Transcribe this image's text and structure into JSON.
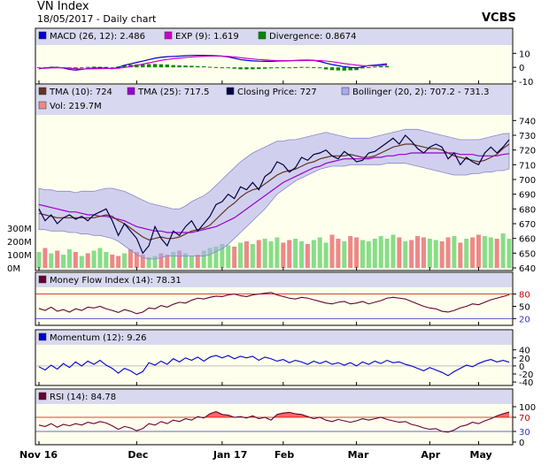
{
  "header": {
    "title": "VN Index",
    "subtitle": "18/05/2017 - Daily chart",
    "brand": "VCBS"
  },
  "colors": {
    "panel_bg": "#ffffee",
    "legend_bg": "#d8d8f0",
    "macd": "#0000cc",
    "exp": "#cc00cc",
    "divergence": "#008800",
    "tma10": "#663322",
    "tma25": "#9900cc",
    "close": "#000044",
    "bollinger_fill": "#aaaaee",
    "vol_up": "#88dd88",
    "vol_down": "#ee8888",
    "mfi": "#660033",
    "momentum": "#0000cc",
    "rsi": "#660033",
    "rsi_fill": "#ff6666"
  },
  "chart_data": [
    {
      "type": "line",
      "panel": "MACD",
      "legend": [
        {
          "label": "MACD (26, 12): 2.486",
          "color": "macd"
        },
        {
          "label": "EXP (9): 1.619",
          "color": "exp"
        },
        {
          "label": "Divergence: 0.8674",
          "color": "divergence"
        }
      ],
      "ylim": [
        -10,
        14
      ],
      "y_ticks": [
        "10",
        "0",
        "-10"
      ],
      "y_tick_values": [
        10,
        0,
        -10
      ],
      "series": [
        {
          "name": "MACD (26, 12)",
          "values": [
            -1,
            -0.5,
            0,
            0,
            -0.5,
            -1.5,
            -2,
            -1.5,
            -0.8,
            -0.5,
            -0.5,
            -0.5,
            -1,
            0,
            1.5,
            2.5,
            3.5,
            4.5,
            5.5,
            6.5,
            7.2,
            7.6,
            7.8,
            8,
            8.3,
            8.5,
            8.6,
            8.6,
            8.5,
            8.3,
            8,
            7.4,
            6.5,
            5.5,
            5,
            4.6,
            4.4,
            4.3,
            4.3,
            4.5,
            4.6,
            4.7,
            4.9,
            5.1,
            5.2,
            5,
            4.2,
            3,
            2,
            1.2,
            0.4,
            0,
            -0.4,
            0.4,
            1.2,
            1.6,
            2,
            2.5
          ]
        },
        {
          "name": "EXP (9)",
          "values": [
            -0.6,
            -0.6,
            -0.4,
            -0.3,
            -0.3,
            -0.6,
            -1,
            -1.2,
            -1.1,
            -1,
            -0.9,
            -0.8,
            -0.8,
            -0.6,
            -0.1,
            0.6,
            1.4,
            2.3,
            3.2,
            4.1,
            5,
            5.6,
            6.2,
            6.6,
            7,
            7.4,
            7.7,
            7.9,
            8.1,
            8.1,
            8,
            7.8,
            7.5,
            6.9,
            6.4,
            6,
            5.6,
            5.3,
            5,
            4.8,
            4.8,
            4.8,
            4.8,
            4.8,
            4.9,
            4.9,
            4.8,
            4.5,
            4,
            3.4,
            2.7,
            2.1,
            1.6,
            1.2,
            1.1,
            1.1,
            1.3,
            1.6
          ]
        },
        {
          "name": "Divergence",
          "type": "bar",
          "values": [
            -0.4,
            0.1,
            0.4,
            0.3,
            -0.2,
            -0.9,
            -1,
            -0.3,
            0.3,
            0.5,
            0.4,
            0.3,
            -0.2,
            0.6,
            1.6,
            1.9,
            2.1,
            2.2,
            2.3,
            2.4,
            2.2,
            2,
            1.6,
            1.4,
            1.3,
            1.1,
            0.9,
            0.7,
            0.4,
            0.2,
            0,
            -0.4,
            -1,
            -1.4,
            -1.4,
            -1.4,
            -1.2,
            -1,
            -0.7,
            -0.3,
            -0.2,
            -0.1,
            0.1,
            0.3,
            0.3,
            0.1,
            -0.6,
            -1.5,
            -2,
            -2.2,
            -2.3,
            -2.1,
            -2,
            -0.8,
            0.1,
            0.5,
            0.7,
            0.9
          ]
        }
      ]
    },
    {
      "type": "line",
      "panel": "Price",
      "legend": [
        {
          "label": "TMA (10): 724",
          "color": "tma10"
        },
        {
          "label": "TMA (25): 717.5",
          "color": "tma25"
        },
        {
          "label": "Closing Price: 727",
          "color": "close"
        },
        {
          "label": "Bollinger (20, 2): 707.2 - 731.3",
          "color": "bollinger_fill"
        },
        {
          "label": "Vol: 219.7M",
          "color": "vol_down"
        }
      ],
      "ylim": [
        640,
        742
      ],
      "y_ticks": [
        "740",
        "730",
        "720",
        "710",
        "700",
        "690",
        "680",
        "670",
        "660",
        "650",
        "640"
      ],
      "y_tick_values": [
        740,
        730,
        720,
        710,
        700,
        690,
        680,
        670,
        660,
        650,
        640
      ],
      "vol_ticks": [
        "300M",
        "200M",
        "100M",
        "0M"
      ],
      "vol_tick_values": [
        300,
        200,
        100,
        0
      ],
      "vol_max": 300,
      "series": [
        {
          "name": "Closing Price",
          "values": [
            680,
            672,
            676,
            670,
            674,
            676,
            673,
            675,
            672,
            676,
            678,
            680,
            672,
            662,
            670,
            665,
            660,
            650,
            655,
            668,
            660,
            655,
            665,
            662,
            668,
            672,
            665,
            670,
            675,
            683,
            685,
            690,
            687,
            695,
            693,
            698,
            693,
            702,
            705,
            712,
            710,
            705,
            708,
            715,
            713,
            717,
            718,
            720,
            716,
            714,
            719,
            716,
            712,
            713,
            718,
            719,
            722,
            725,
            728,
            724,
            730,
            726,
            721,
            718,
            722,
            724,
            722,
            714,
            718,
            710,
            715,
            712,
            710,
            718,
            722,
            718,
            722,
            727
          ]
        },
        {
          "name": "TMA (10)",
          "values": [
            677,
            676,
            675,
            674,
            674,
            674,
            674,
            674,
            674,
            674,
            675,
            676,
            675,
            672,
            670,
            667,
            664,
            661,
            659,
            660,
            661,
            660,
            660,
            661,
            663,
            665,
            666,
            667,
            669,
            673,
            677,
            681,
            684,
            688,
            691,
            693,
            694,
            697,
            700,
            703,
            705,
            706,
            707,
            709,
            711,
            712,
            714,
            715,
            716,
            716,
            716,
            717,
            716,
            715,
            715,
            716,
            718,
            720,
            722,
            723,
            724,
            724,
            723,
            722,
            721,
            721,
            720,
            718,
            716,
            715,
            714,
            713,
            712,
            713,
            715,
            717,
            721,
            724
          ]
        },
        {
          "name": "TMA (25)",
          "values": [
            683,
            682,
            681,
            680,
            679,
            678,
            678,
            677,
            676,
            676,
            675,
            675,
            674,
            673,
            672,
            670,
            668,
            667,
            666,
            665,
            665,
            664,
            664,
            664,
            664,
            664,
            665,
            666,
            667,
            668,
            670,
            672,
            674,
            677,
            680,
            683,
            686,
            689,
            692,
            695,
            698,
            700,
            702,
            704,
            706,
            708,
            709,
            711,
            712,
            713,
            714,
            714,
            714,
            714,
            714,
            715,
            715,
            716,
            716,
            717,
            717,
            718,
            718,
            718,
            718,
            718,
            718,
            718,
            718,
            717,
            717,
            717,
            716,
            716,
            716,
            716,
            717,
            717.5
          ]
        },
        {
          "name": "Bollinger Upper",
          "values": [
            694,
            693,
            693,
            692,
            692,
            692,
            691,
            692,
            692,
            692,
            693,
            694,
            694,
            693,
            692,
            690,
            688,
            686,
            684,
            683,
            682,
            681,
            680,
            680,
            682,
            685,
            687,
            689,
            692,
            696,
            700,
            704,
            708,
            712,
            715,
            718,
            720,
            722,
            724,
            726,
            726,
            727,
            727,
            728,
            729,
            730,
            731,
            732,
            731,
            730,
            729,
            728,
            728,
            728,
            728,
            729,
            730,
            731,
            732,
            733,
            734,
            734,
            734,
            733,
            732,
            731,
            730,
            729,
            728,
            727,
            727,
            727,
            727,
            728,
            729,
            730,
            731,
            731.3
          ]
        },
        {
          "name": "Bollinger Lower",
          "values": [
            666,
            666,
            665,
            665,
            665,
            664,
            664,
            663,
            663,
            662,
            662,
            661,
            660,
            658,
            655,
            652,
            649,
            647,
            646,
            646,
            647,
            648,
            648,
            648,
            648,
            648,
            648,
            648,
            649,
            651,
            653,
            656,
            660,
            664,
            668,
            672,
            676,
            680,
            685,
            690,
            693,
            696,
            699,
            701,
            703,
            705,
            707,
            708,
            709,
            709,
            709,
            710,
            710,
            710,
            710,
            710,
            710,
            711,
            711,
            711,
            711,
            710,
            709,
            708,
            707,
            706,
            705,
            704,
            703,
            703,
            703,
            704,
            704,
            705,
            705,
            706,
            706,
            707.2
          ]
        },
        {
          "name": "Vol",
          "type": "bar",
          "values": [
            120,
            150,
            110,
            130,
            100,
            140,
            120,
            90,
            110,
            130,
            150,
            120,
            100,
            90,
            110,
            140,
            120,
            100,
            80,
            90,
            110,
            100,
            120,
            130,
            110,
            90,
            100,
            130,
            150,
            160,
            180,
            170,
            160,
            190,
            200,
            180,
            210,
            220,
            200,
            230,
            190,
            210,
            220,
            200,
            180,
            210,
            230,
            190,
            250,
            220,
            200,
            240,
            230,
            210,
            200,
            220,
            240,
            220,
            250,
            230,
            200,
            210,
            240,
            230,
            220,
            210,
            200,
            230,
            240,
            190,
            220,
            230,
            250,
            240,
            230,
            220,
            260,
            219.7
          ]
        }
      ]
    },
    {
      "type": "line",
      "panel": "MFI",
      "legend": [
        {
          "label": "Money Flow Index (14): 78.31",
          "color": "mfi"
        }
      ],
      "ylim": [
        10,
        90
      ],
      "y_ticks": [
        "80",
        "50",
        "20"
      ],
      "y_tick_values": [
        80,
        50,
        20
      ],
      "series": [
        {
          "name": "Money Flow Index (14)",
          "values": [
            45,
            40,
            48,
            38,
            42,
            36,
            44,
            40,
            48,
            46,
            50,
            44,
            40,
            35,
            42,
            38,
            32,
            36,
            46,
            44,
            52,
            48,
            55,
            60,
            58,
            65,
            70,
            68,
            72,
            75,
            74,
            78,
            80,
            76,
            74,
            78,
            80,
            82,
            84,
            78,
            74,
            70,
            68,
            72,
            70,
            66,
            62,
            58,
            56,
            60,
            62,
            56,
            58,
            62,
            56,
            60,
            64,
            70,
            72,
            70,
            68,
            62,
            56,
            50,
            46,
            44,
            38,
            36,
            40,
            46,
            50,
            56,
            54,
            60,
            66,
            70,
            74,
            78.31
          ]
        }
      ]
    },
    {
      "type": "line",
      "panel": "Momentum",
      "legend": [
        {
          "label": "Momentum (12): 9.26",
          "color": "momentum"
        }
      ],
      "ylim": [
        -42,
        46
      ],
      "y_ticks": [
        "40",
        "20",
        "0",
        "-20",
        "-40"
      ],
      "y_tick_values": [
        40,
        20,
        0,
        -20,
        -40
      ],
      "series": [
        {
          "name": "Momentum (12)",
          "values": [
            -2,
            -10,
            2,
            -8,
            6,
            -4,
            10,
            0,
            12,
            4,
            14,
            2,
            -6,
            -18,
            -6,
            -12,
            -22,
            -14,
            8,
            2,
            12,
            4,
            18,
            10,
            20,
            14,
            22,
            12,
            22,
            26,
            20,
            26,
            18,
            24,
            20,
            24,
            14,
            22,
            18,
            12,
            16,
            8,
            14,
            10,
            4,
            12,
            6,
            12,
            4,
            8,
            2,
            8,
            0,
            10,
            4,
            12,
            6,
            14,
            8,
            10,
            4,
            0,
            -6,
            -12,
            -4,
            -10,
            -16,
            -24,
            -14,
            -6,
            2,
            -2,
            6,
            12,
            16,
            10,
            14,
            9.26
          ]
        }
      ]
    },
    {
      "type": "area",
      "panel": "RSI",
      "legend": [
        {
          "label": "RSI (14): 84.78",
          "color": "rsi"
        }
      ],
      "ylim": [
        0,
        100
      ],
      "y_ticks": [
        "100",
        "70",
        "30",
        "0"
      ],
      "y_tick_values": [
        100,
        70,
        30,
        0
      ],
      "overbought": 70,
      "oversold": 30,
      "series": [
        {
          "name": "RSI (14)",
          "values": [
            48,
            44,
            52,
            42,
            50,
            46,
            52,
            48,
            56,
            52,
            58,
            54,
            46,
            36,
            44,
            40,
            32,
            38,
            52,
            48,
            58,
            52,
            62,
            58,
            66,
            62,
            72,
            68,
            80,
            86,
            78,
            76,
            70,
            72,
            68,
            74,
            66,
            70,
            62,
            78,
            82,
            84,
            80,
            78,
            72,
            66,
            70,
            62,
            58,
            64,
            60,
            56,
            60,
            66,
            62,
            66,
            70,
            64,
            60,
            56,
            58,
            50,
            46,
            40,
            36,
            38,
            30,
            28,
            34,
            44,
            48,
            56,
            52,
            60,
            66,
            74,
            80,
            84.78
          ]
        }
      ]
    }
  ],
  "x_axis": {
    "labels": [
      "Nov 16",
      "Dec",
      "Jan 17",
      "Feb",
      "Mar",
      "Apr",
      "May"
    ],
    "label_index": [
      0,
      16,
      30,
      40,
      52,
      64,
      72
    ]
  }
}
